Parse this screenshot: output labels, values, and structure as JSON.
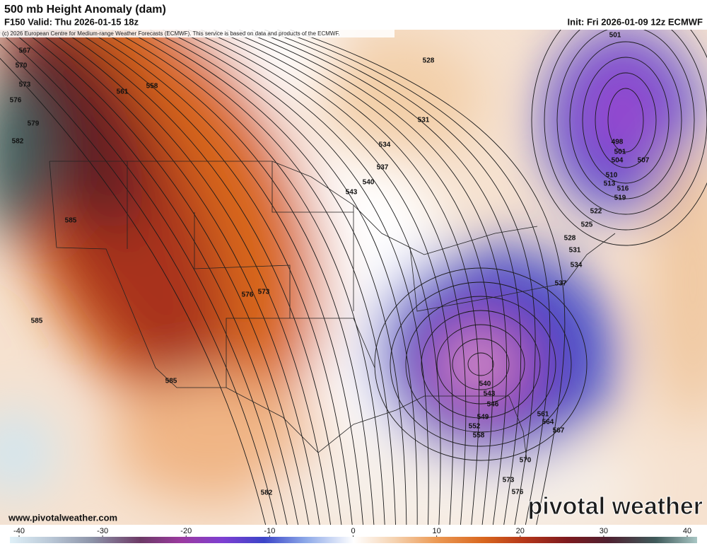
{
  "header": {
    "title": "500 mb Height Anomaly (dam)",
    "valid": "F150 Valid: Thu 2026-01-15 18z",
    "init": "Init: Fri 2026-01-09 12z ECMWF",
    "credit": "(c) 2026 European Centre for Medium-range Weather Forecasts (ECMWF). This service is based on data and products of the ECMWF."
  },
  "footer": {
    "website": "www.pivotalweather.com",
    "logo": "pivotal weather"
  },
  "colorbar": {
    "ticks": [
      -40,
      -30,
      -20,
      -10,
      0,
      10,
      20,
      30,
      40
    ]
  },
  "contour_labels": [
    567,
    570,
    573,
    576,
    579,
    582,
    561,
    558,
    585,
    585,
    576,
    573,
    585,
    582,
    528,
    531,
    534,
    537,
    540,
    543,
    501,
    498,
    501,
    504,
    507,
    510,
    513,
    516,
    519,
    522,
    525,
    528,
    531,
    534,
    537,
    540,
    543,
    546,
    549,
    552,
    558,
    561,
    564,
    567,
    570,
    573,
    576
  ]
}
